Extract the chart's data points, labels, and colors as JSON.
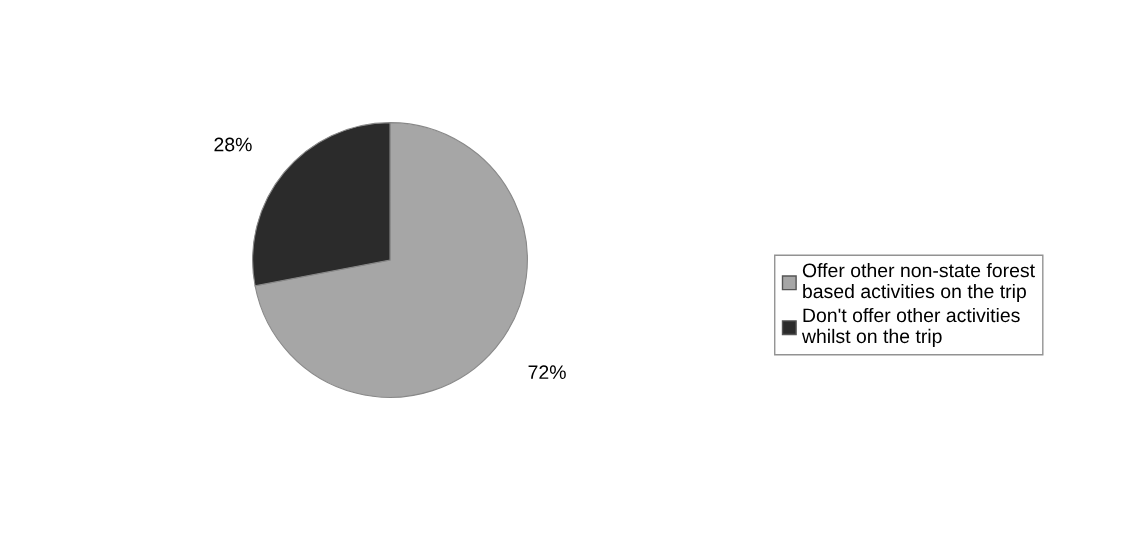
{
  "chart_data": {
    "type": "pie",
    "categories": [
      "Offer other non-state forest\nbased activities on the trip",
      "Don't offer other activities\nwhilst on the trip"
    ],
    "values": [
      72,
      28
    ],
    "colors": [
      "#a6a6a6",
      "#2b2b2b"
    ],
    "value_labels": [
      "72%",
      "28%"
    ],
    "legend": "right"
  }
}
